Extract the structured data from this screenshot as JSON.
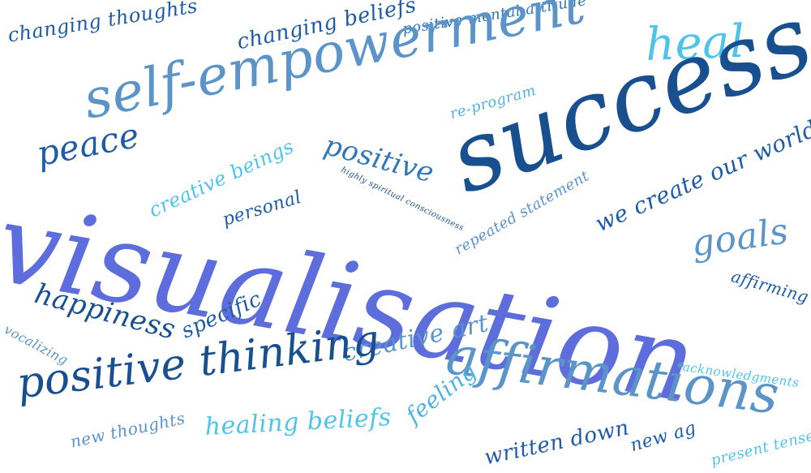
{
  "words": [
    "visualisation",
    "success",
    "self-empowerment",
    "heal",
    "affirmations",
    "positive thinking",
    "changing thoughts",
    "changing beliefs",
    "positive mental attitude",
    "peace",
    "positive",
    "re-program",
    "highly spiritual consciousness",
    "creative beings",
    "personal",
    "repeated statement",
    "we create our world",
    "goals",
    "affirming",
    "happiness",
    "specific",
    "vocalizing",
    "creative art",
    "acknowledgments",
    "healing beliefs",
    "feeling",
    "new thoughts",
    "written down",
    "new ag",
    "present tense"
  ]
}
